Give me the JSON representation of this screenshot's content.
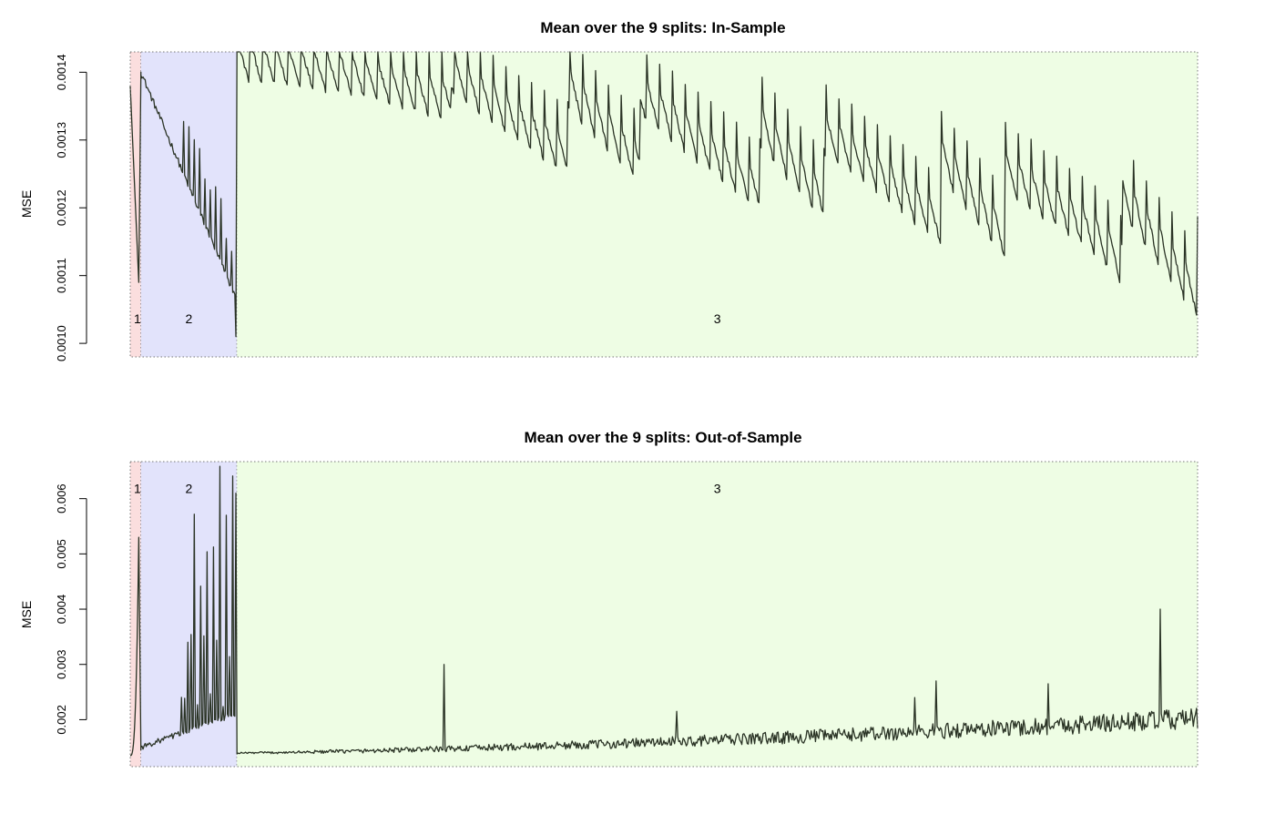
{
  "chart_data": [
    {
      "type": "line",
      "title": "Mean over the 9 splits: In-Sample",
      "ylabel": "MSE",
      "ylim": [
        0.00098,
        0.00143
      ],
      "yticks": [
        0.001,
        0.0011,
        0.0012,
        0.0013,
        0.0014
      ],
      "ytick_labels": [
        "0.0010",
        "0.0011",
        "0.0012",
        "0.0013",
        "0.0014"
      ],
      "xlim": [
        0,
        1000
      ],
      "regions": [
        {
          "label": "1",
          "start": 0,
          "end": 10,
          "color": "#fbdede"
        },
        {
          "label": "2",
          "start": 10,
          "end": 100,
          "color": "#e2e3fb"
        },
        {
          "label": "3",
          "start": 100,
          "end": 1000,
          "color": "#eefde4"
        }
      ],
      "region_label_y": 0.00103,
      "line_color": "#2a3325",
      "series_keypoints": [
        [
          0,
          0.00138
        ],
        [
          8,
          0.00109
        ],
        [
          10,
          0.0014
        ],
        [
          30,
          0.00132
        ],
        [
          60,
          0.00124
        ],
        [
          98,
          0.00101
        ],
        [
          100,
          0.00143
        ],
        [
          200,
          0.00141
        ],
        [
          300,
          0.00137
        ],
        [
          400,
          0.00134
        ],
        [
          500,
          0.00132
        ],
        [
          600,
          0.00128
        ],
        [
          700,
          0.00126
        ],
        [
          800,
          0.00122
        ],
        [
          900,
          0.0012
        ],
        [
          1000,
          0.00113
        ]
      ]
    },
    {
      "type": "line",
      "title": "Mean over the 9 splits: Out-of-Sample",
      "ylabel": "MSE",
      "ylim": [
        0.00115,
        0.00667
      ],
      "yticks": [
        0.002,
        0.003,
        0.004,
        0.005,
        0.006
      ],
      "ytick_labels": [
        "0.002",
        "0.003",
        "0.004",
        "0.005",
        "0.006"
      ],
      "xlim": [
        0,
        1000
      ],
      "regions": [
        {
          "label": "1",
          "start": 0,
          "end": 10,
          "color": "#fbdede"
        },
        {
          "label": "2",
          "start": 10,
          "end": 100,
          "color": "#e2e3fb"
        },
        {
          "label": "3",
          "start": 100,
          "end": 1000,
          "color": "#eefde4"
        }
      ],
      "region_label_y": 0.0061,
      "line_color": "#2a3325",
      "series_keypoints": [
        [
          0,
          0.00135
        ],
        [
          8,
          0.0053
        ],
        [
          10,
          0.00145
        ],
        [
          50,
          0.00155
        ],
        [
          98,
          0.0032
        ],
        [
          100,
          0.00138
        ],
        [
          294,
          0.003
        ],
        [
          500,
          0.0015
        ],
        [
          700,
          0.0017
        ],
        [
          755,
          0.0027
        ],
        [
          860,
          0.00265
        ],
        [
          965,
          0.004
        ],
        [
          1000,
          0.002
        ]
      ]
    }
  ]
}
